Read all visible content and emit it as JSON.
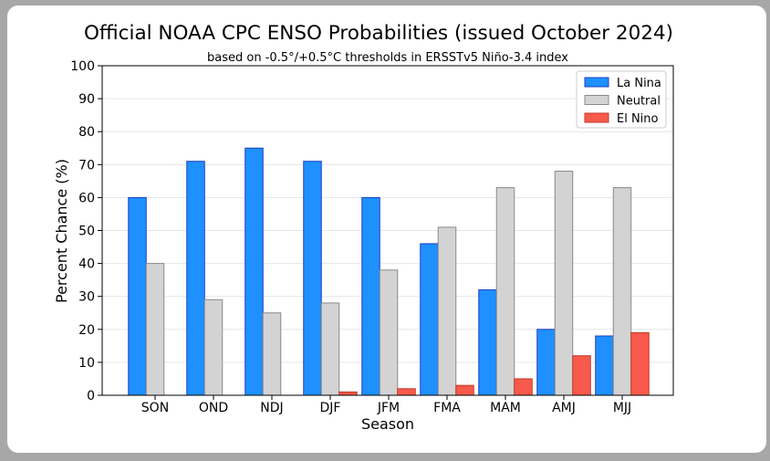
{
  "chart_data": {
    "type": "bar",
    "title": "Official NOAA CPC ENSO Probabilities (issued October 2024)",
    "subtitle": "based on -0.5°/+0.5°C thresholds in ERSSTv5 Niño-3.4 index",
    "xlabel": "Season",
    "ylabel": "Percent Chance (%)",
    "ylim": [
      0,
      100
    ],
    "yticks": [
      0,
      10,
      20,
      30,
      40,
      50,
      60,
      70,
      80,
      90,
      100
    ],
    "grid": true,
    "legend_position": "top-right",
    "categories": [
      "SON",
      "OND",
      "NDJ",
      "DJF",
      "JFM",
      "FMA",
      "MAM",
      "AMJ",
      "MJJ"
    ],
    "series": [
      {
        "name": "La Nina",
        "color": "#1e90ff",
        "edge": "#1f3fbf",
        "values": [
          60,
          71,
          75,
          71,
          60,
          46,
          32,
          20,
          18
        ]
      },
      {
        "name": "Neutral",
        "color": "#d3d3d3",
        "edge": "#8a8a8a",
        "values": [
          40,
          29,
          25,
          28,
          38,
          51,
          63,
          68,
          63
        ]
      },
      {
        "name": "El Nino",
        "color": "#f75a4a",
        "edge": "#c0392b",
        "values": [
          0,
          0,
          0,
          1,
          2,
          3,
          5,
          12,
          19
        ]
      }
    ]
  }
}
